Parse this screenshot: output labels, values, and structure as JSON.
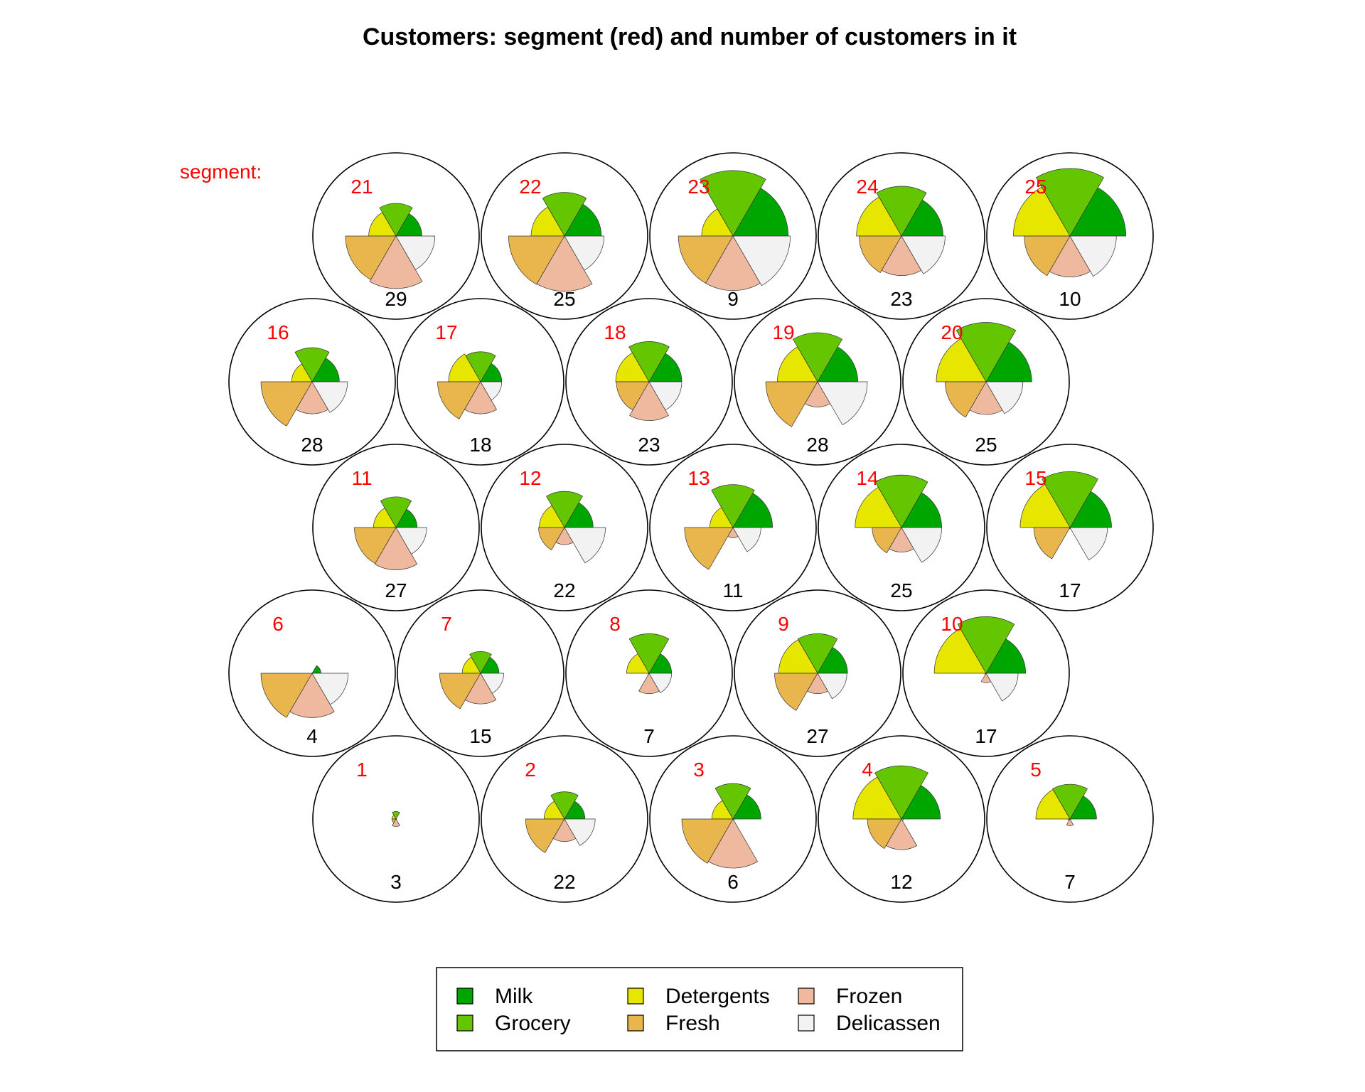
{
  "chart_data": {
    "type": "polar-area-grid",
    "title": "Customers: segment (red) and number of customers in it",
    "segment_caption": "segment:",
    "variables": [
      {
        "name": "Milk",
        "color": "#00a600"
      },
      {
        "name": "Grocery",
        "color": "#63c600"
      },
      {
        "name": "Detergents",
        "color": "#e6e600"
      },
      {
        "name": "Fresh",
        "color": "#e8b64d"
      },
      {
        "name": "Frozen",
        "color": "#eeb99f"
      },
      {
        "name": "Delicassen",
        "color": "#f2f2f2"
      }
    ],
    "value_scale": "fraction of circle radius (0-1)",
    "cells": [
      {
        "segment": "1",
        "customers": "3",
        "values": [
          0.0,
          0.11,
          0.06,
          0.06,
          0.11,
          0.01
        ]
      },
      {
        "segment": "2",
        "customers": "22",
        "values": [
          0.3,
          0.4,
          0.3,
          0.57,
          0.33,
          0.45
        ]
      },
      {
        "segment": "3",
        "customers": "6",
        "values": [
          0.41,
          0.52,
          0.31,
          0.75,
          0.72,
          0.02
        ]
      },
      {
        "segment": "4",
        "customers": "12",
        "values": [
          0.57,
          0.78,
          0.71,
          0.5,
          0.45,
          0.03
        ]
      },
      {
        "segment": "5",
        "customers": "7",
        "values": [
          0.39,
          0.51,
          0.5,
          0.03,
          0.1,
          0.01
        ]
      },
      {
        "segment": "6",
        "customers": "4",
        "values": [
          0.13,
          0.0,
          0.0,
          0.75,
          0.65,
          0.53
        ]
      },
      {
        "segment": "7",
        "customers": "15",
        "values": [
          0.27,
          0.32,
          0.27,
          0.6,
          0.45,
          0.34
        ]
      },
      {
        "segment": "8",
        "customers": "7",
        "values": [
          0.33,
          0.58,
          0.33,
          0.02,
          0.3,
          0.33
        ]
      },
      {
        "segment": "9",
        "customers": "27",
        "values": [
          0.44,
          0.58,
          0.57,
          0.63,
          0.3,
          0.43
        ]
      },
      {
        "segment": "10",
        "customers": "17",
        "values": [
          0.58,
          0.83,
          0.76,
          0.02,
          0.14,
          0.47
        ]
      },
      {
        "segment": "11",
        "customers": "27",
        "values": [
          0.31,
          0.45,
          0.33,
          0.61,
          0.62,
          0.45
        ]
      },
      {
        "segment": "12",
        "customers": "22",
        "values": [
          0.42,
          0.53,
          0.37,
          0.38,
          0.25,
          0.6
        ]
      },
      {
        "segment": "13",
        "customers": "11",
        "values": [
          0.58,
          0.63,
          0.34,
          0.71,
          0.15,
          0.41
        ]
      },
      {
        "segment": "14",
        "customers": "25",
        "values": [
          0.59,
          0.77,
          0.68,
          0.43,
          0.36,
          0.59
        ]
      },
      {
        "segment": "15",
        "customers": "17",
        "values": [
          0.61,
          0.82,
          0.73,
          0.53,
          0.02,
          0.55
        ]
      },
      {
        "segment": "16",
        "customers": "28",
        "values": [
          0.4,
          0.5,
          0.3,
          0.75,
          0.47,
          0.52
        ]
      },
      {
        "segment": "17",
        "customers": "18",
        "values": [
          0.31,
          0.44,
          0.47,
          0.63,
          0.47,
          0.31
        ]
      },
      {
        "segment": "18",
        "customers": "23",
        "values": [
          0.48,
          0.59,
          0.49,
          0.48,
          0.57,
          0.48
        ]
      },
      {
        "segment": "19",
        "customers": "28",
        "values": [
          0.59,
          0.72,
          0.59,
          0.76,
          0.37,
          0.73
        ]
      },
      {
        "segment": "20",
        "customers": "25",
        "values": [
          0.67,
          0.87,
          0.73,
          0.6,
          0.48,
          0.54
        ]
      },
      {
        "segment": "21",
        "customers": "29",
        "values": [
          0.38,
          0.48,
          0.4,
          0.74,
          0.77,
          0.57
        ]
      },
      {
        "segment": "22",
        "customers": "25",
        "values": [
          0.54,
          0.64,
          0.49,
          0.82,
          0.81,
          0.58
        ]
      },
      {
        "segment": "23",
        "customers": "9",
        "values": [
          0.81,
          0.96,
          0.46,
          0.8,
          0.8,
          0.84
        ]
      },
      {
        "segment": "24",
        "customers": "23",
        "values": [
          0.61,
          0.73,
          0.66,
          0.62,
          0.58,
          0.64
        ]
      },
      {
        "segment": "25",
        "customers": "10",
        "values": [
          0.82,
          0.99,
          0.83,
          0.67,
          0.6,
          0.68
        ]
      }
    ]
  },
  "legend": {
    "items": [
      "Milk",
      "Grocery",
      "Detergents",
      "Fresh",
      "Frozen",
      "Delicassen"
    ]
  }
}
